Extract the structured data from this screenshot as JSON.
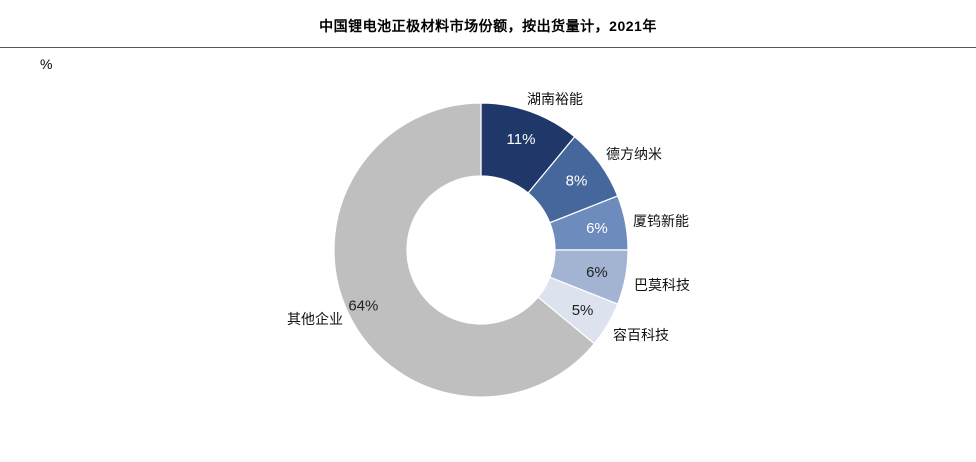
{
  "chart_data": {
    "type": "pie",
    "title": "中国锂电池正极材料市场份额，按出货量计，2021年",
    "unit": "%",
    "slices": [
      {
        "label": "湖南裕能",
        "value": 11,
        "display": "11%",
        "color": "#1f3769",
        "text_color": "#ffffff"
      },
      {
        "label": "德方纳米",
        "value": 8,
        "display": "8%",
        "color": "#46679b",
        "text_color": "#ffffff"
      },
      {
        "label": "厦钨新能",
        "value": 6,
        "display": "6%",
        "color": "#6d8cbd",
        "text_color": "#ffffff"
      },
      {
        "label": "巴莫科技",
        "value": 6,
        "display": "6%",
        "color": "#a2b4d2",
        "text_color": "#222222"
      },
      {
        "label": "容百科技",
        "value": 5,
        "display": "5%",
        "color": "#dde3ee",
        "text_color": "#222222"
      },
      {
        "label": "其他企业",
        "value": 64,
        "display": "64%",
        "color": "#bfbfbf",
        "text_color": "#222222"
      }
    ]
  }
}
